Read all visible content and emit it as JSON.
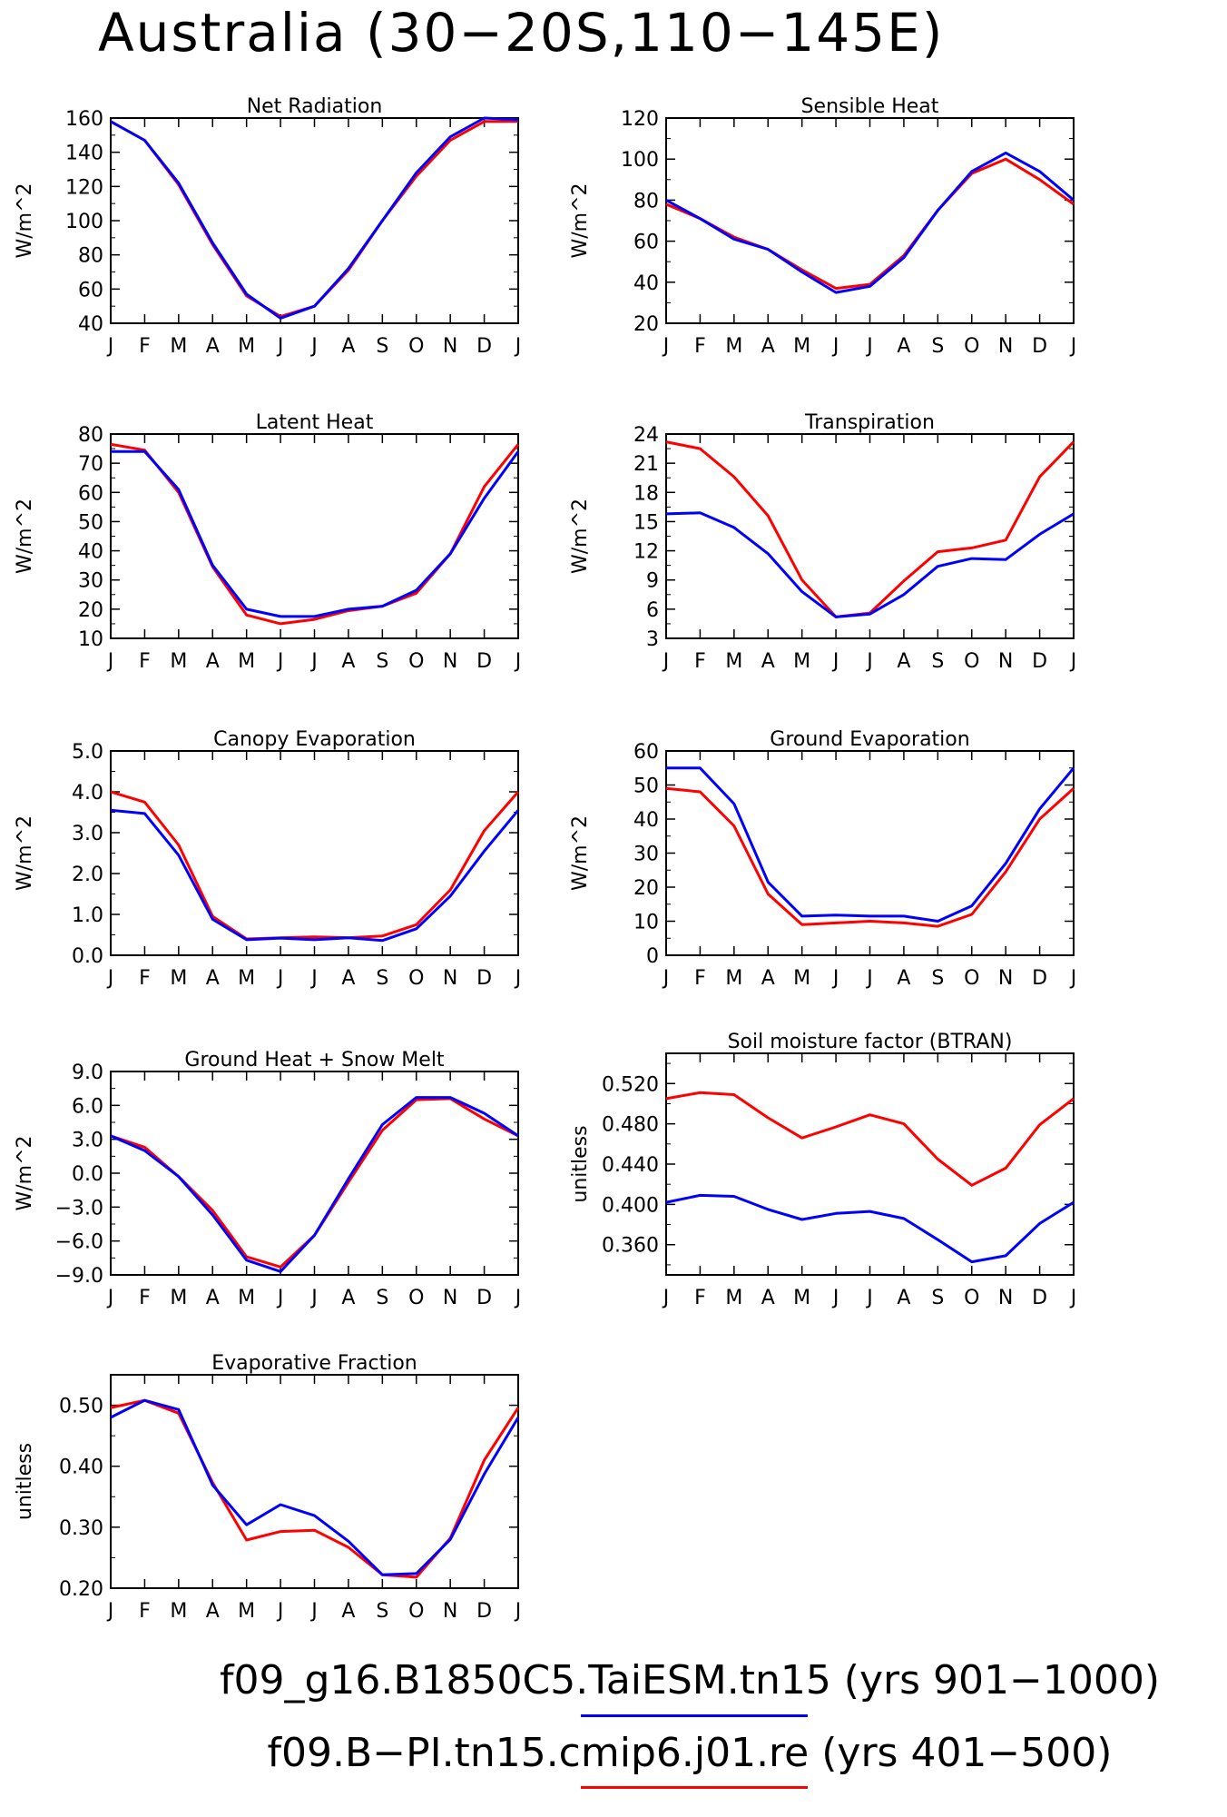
{
  "title": "Australia (30−20S,110−145E)",
  "month_labels": [
    "J",
    "F",
    "M",
    "A",
    "M",
    "J",
    "J",
    "A",
    "S",
    "O",
    "N",
    "D",
    "J"
  ],
  "legend": [
    {
      "label": "f09_g16.B1850C5.TaiESM.tn15 (yrs 901−1000)",
      "color": "#0000ff"
    },
    {
      "label": "f09.B−PI.tn15.cmip6.j01.re (yrs 401−500)",
      "color": "#ff0000"
    }
  ],
  "colors": {
    "blue": "#0000ff",
    "red": "#ff0000"
  },
  "chart_data": [
    {
      "type": "line",
      "title": "Net Radiation",
      "ylabel": "W/m^2",
      "ylim": [
        40,
        160
      ],
      "yticks": [
        "40",
        "60",
        "80",
        "100",
        "120",
        "140",
        "160"
      ],
      "categories": [
        "J",
        "F",
        "M",
        "A",
        "M",
        "J",
        "J",
        "A",
        "S",
        "O",
        "N",
        "D",
        "J"
      ],
      "series": [
        {
          "color": "#ff0000",
          "values": [
            158,
            147,
            121,
            86,
            56,
            44,
            50,
            71,
            100,
            126,
            147,
            158,
            158
          ]
        },
        {
          "color": "#0000ff",
          "values": [
            158,
            147,
            122,
            87,
            57,
            43,
            50,
            72,
            100,
            128,
            149,
            160,
            159
          ]
        }
      ]
    },
    {
      "type": "line",
      "title": "Sensible Heat",
      "ylabel": "W/m^2",
      "ylim": [
        20,
        120
      ],
      "yticks": [
        "20",
        "40",
        "60",
        "80",
        "100",
        "120"
      ],
      "categories": [
        "J",
        "F",
        "M",
        "A",
        "M",
        "J",
        "J",
        "A",
        "S",
        "O",
        "N",
        "D",
        "J"
      ],
      "series": [
        {
          "color": "#ff0000",
          "values": [
            78,
            71,
            62,
            56,
            46,
            37,
            39,
            53,
            75,
            93,
            100,
            90,
            78
          ]
        },
        {
          "color": "#0000ff",
          "values": [
            80,
            71,
            61,
            56,
            45,
            35,
            38,
            52,
            75,
            94,
            103,
            94,
            80
          ]
        }
      ]
    },
    {
      "type": "line",
      "title": "Latent Heat",
      "ylabel": "W/m^2",
      "ylim": [
        10,
        80
      ],
      "yticks": [
        "10",
        "20",
        "30",
        "40",
        "50",
        "60",
        "70",
        "80"
      ],
      "categories": [
        "J",
        "F",
        "M",
        "A",
        "M",
        "J",
        "J",
        "A",
        "S",
        "O",
        "N",
        "D",
        "J"
      ],
      "series": [
        {
          "color": "#ff0000",
          "values": [
            76.5,
            74.5,
            60,
            34.5,
            18,
            15,
            16.5,
            19.5,
            21,
            25.5,
            39,
            62,
            76.5
          ]
        },
        {
          "color": "#0000ff",
          "values": [
            74,
            74,
            61,
            35,
            20,
            17.5,
            17.5,
            20,
            21,
            26.5,
            39,
            58,
            74
          ]
        }
      ]
    },
    {
      "type": "line",
      "title": "Transpiration",
      "ylabel": "W/m^2",
      "ylim": [
        3,
        24
      ],
      "yticks": [
        "3",
        "6",
        "9",
        "12",
        "15",
        "18",
        "21",
        "24"
      ],
      "categories": [
        "J",
        "F",
        "M",
        "A",
        "M",
        "J",
        "J",
        "A",
        "S",
        "O",
        "N",
        "D",
        "J"
      ],
      "series": [
        {
          "color": "#ff0000",
          "values": [
            23.2,
            22.5,
            19.6,
            15.6,
            9,
            5.2,
            5.6,
            8.9,
            11.9,
            12.3,
            13.1,
            19.6,
            23.2
          ]
        },
        {
          "color": "#0000ff",
          "values": [
            15.8,
            15.9,
            14.4,
            11.7,
            7.8,
            5.2,
            5.5,
            7.5,
            10.4,
            11.2,
            11.1,
            13.7,
            15.8
          ]
        }
      ]
    },
    {
      "type": "line",
      "title": "Canopy Evaporation",
      "ylabel": "W/m^2",
      "ylim": [
        0,
        5
      ],
      "yticks": [
        "0.0",
        "1.0",
        "2.0",
        "3.0",
        "4.0",
        "5.0"
      ],
      "categories": [
        "J",
        "F",
        "M",
        "A",
        "M",
        "J",
        "J",
        "A",
        "S",
        "O",
        "N",
        "D",
        "J"
      ],
      "series": [
        {
          "color": "#ff0000",
          "values": [
            4.0,
            3.75,
            2.7,
            0.95,
            0.4,
            0.43,
            0.45,
            0.43,
            0.47,
            0.75,
            1.6,
            3.05,
            4.0
          ]
        },
        {
          "color": "#0000ff",
          "values": [
            3.55,
            3.47,
            2.45,
            0.88,
            0.38,
            0.42,
            0.38,
            0.43,
            0.36,
            0.65,
            1.45,
            2.55,
            3.55
          ]
        }
      ]
    },
    {
      "type": "line",
      "title": "Ground Evaporation",
      "ylabel": "W/m^2",
      "ylim": [
        0,
        60
      ],
      "yticks": [
        "0",
        "10",
        "20",
        "30",
        "40",
        "50",
        "60"
      ],
      "categories": [
        "J",
        "F",
        "M",
        "A",
        "M",
        "J",
        "J",
        "A",
        "S",
        "O",
        "N",
        "D",
        "J"
      ],
      "series": [
        {
          "color": "#ff0000",
          "values": [
            49,
            48,
            38,
            18,
            9,
            9.5,
            10,
            9.5,
            8.5,
            12,
            24.5,
            40,
            49
          ]
        },
        {
          "color": "#0000ff",
          "values": [
            55,
            55,
            44.5,
            21.5,
            11.5,
            11.8,
            11.5,
            11.5,
            10,
            14.5,
            27,
            43,
            55
          ]
        }
      ]
    },
    {
      "type": "line",
      "title": "Ground Heat + Snow Melt",
      "ylabel": "W/m^2",
      "ylim": [
        -9,
        9
      ],
      "yticks": [
        "−9.0",
        "−6.0",
        "−3.0",
        "0.0",
        "3.0",
        "6.0",
        "9.0"
      ],
      "categories": [
        "J",
        "F",
        "M",
        "A",
        "M",
        "J",
        "J",
        "A",
        "S",
        "O",
        "N",
        "D",
        "J"
      ],
      "series": [
        {
          "color": "#ff0000",
          "values": [
            3.3,
            2.3,
            -0.3,
            -3.3,
            -7.4,
            -8.3,
            -5.5,
            -0.8,
            3.8,
            6.5,
            6.6,
            4.8,
            3.3
          ]
        },
        {
          "color": "#0000ff",
          "values": [
            3.3,
            2.0,
            -0.3,
            -3.7,
            -7.7,
            -8.7,
            -5.5,
            -0.5,
            4.3,
            6.7,
            6.7,
            5.3,
            3.3
          ]
        }
      ]
    },
    {
      "type": "line",
      "title": "Soil moisture factor (BTRAN)",
      "ylabel": "unitless",
      "ylim": [
        0.33,
        0.55
      ],
      "yticks": [
        "0.360",
        "0.400",
        "0.440",
        "0.480",
        "0.520"
      ],
      "categories": [
        "J",
        "F",
        "M",
        "A",
        "M",
        "J",
        "J",
        "A",
        "S",
        "O",
        "N",
        "D",
        "J"
      ],
      "series": [
        {
          "color": "#ff0000",
          "values": [
            0.505,
            0.511,
            0.509,
            0.486,
            0.466,
            0.477,
            0.489,
            0.48,
            0.445,
            0.419,
            0.436,
            0.479,
            0.505
          ]
        },
        {
          "color": "#0000ff",
          "values": [
            0.402,
            0.409,
            0.408,
            0.395,
            0.385,
            0.391,
            0.393,
            0.386,
            0.365,
            0.343,
            0.349,
            0.381,
            0.402
          ]
        }
      ]
    },
    {
      "type": "line",
      "title": "Evaporative Fraction",
      "ylabel": "unitless",
      "ylim": [
        0.2,
        0.55
      ],
      "yticks": [
        "0.20",
        "0.30",
        "0.40",
        "0.50"
      ],
      "categories": [
        "J",
        "F",
        "M",
        "A",
        "M",
        "J",
        "J",
        "A",
        "S",
        "O",
        "N",
        "D",
        "J"
      ],
      "series": [
        {
          "color": "#ff0000",
          "values": [
            0.496,
            0.508,
            0.487,
            0.373,
            0.279,
            0.293,
            0.295,
            0.267,
            0.222,
            0.218,
            0.282,
            0.41,
            0.496
          ]
        },
        {
          "color": "#0000ff",
          "values": [
            0.48,
            0.508,
            0.493,
            0.369,
            0.304,
            0.337,
            0.319,
            0.277,
            0.222,
            0.224,
            0.28,
            0.387,
            0.48
          ]
        }
      ]
    }
  ]
}
